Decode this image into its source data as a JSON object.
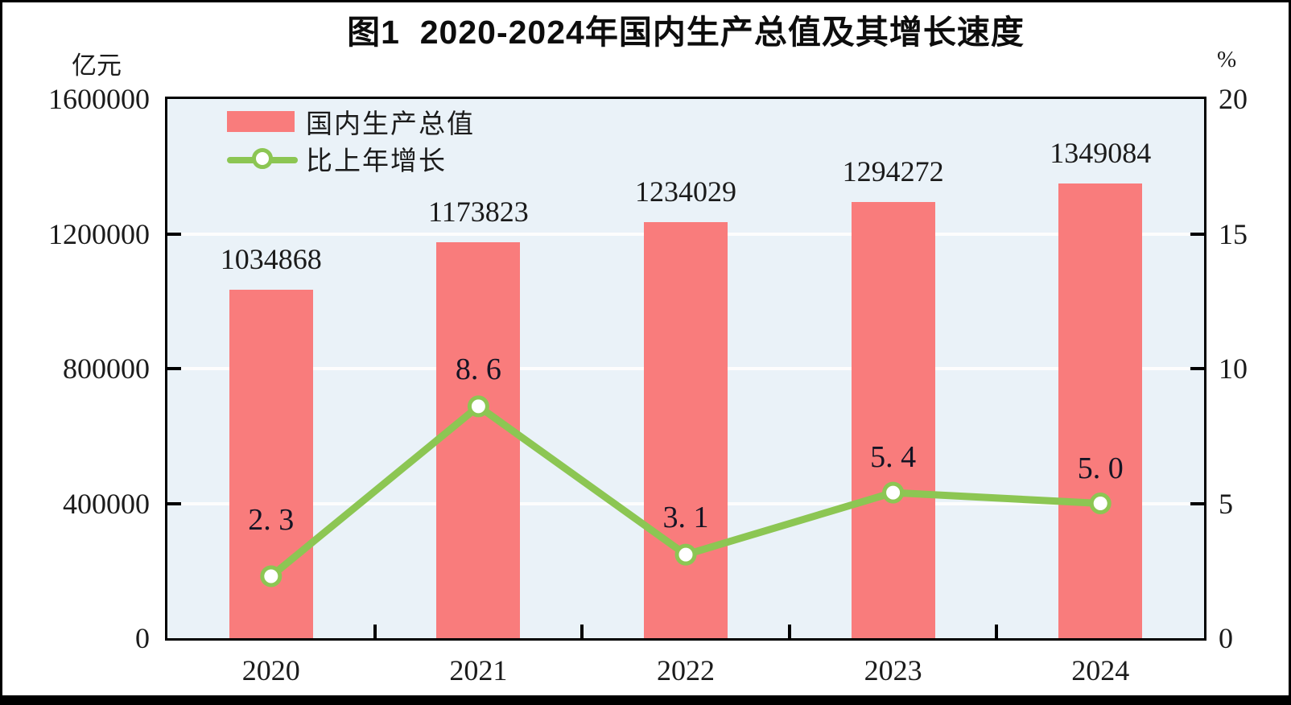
{
  "figure": {
    "frame_color": "#000000",
    "background": "#ffffff",
    "plot_background": "#eaf2f8"
  },
  "chart_data": {
    "type": "bar",
    "title": "图1  2020-2024年国内生产总值及其增长速度",
    "categories": [
      "2020",
      "2021",
      "2022",
      "2023",
      "2024"
    ],
    "series": [
      {
        "name": "国内生产总值",
        "type": "bar",
        "values": [
          1034868,
          1173823,
          1234029,
          1294272,
          1349084
        ],
        "value_labels": [
          "1034868",
          "1173823",
          "1234029",
          "1294272",
          "1349084"
        ],
        "color": "#f97c7c",
        "axis": "left"
      },
      {
        "name": "比上年增长",
        "type": "line",
        "values": [
          2.3,
          8.6,
          3.1,
          5.4,
          5.0
        ],
        "value_labels": [
          "2. 3",
          "8. 6",
          "3. 1",
          "5. 4",
          "5. 0"
        ],
        "color": "#8cc653",
        "marker": "circle-white-fill",
        "axis": "right"
      }
    ],
    "left_axis": {
      "unit": "亿元",
      "min": 0,
      "max": 1600000,
      "tick_values": [
        0,
        400000,
        800000,
        1200000,
        1600000
      ],
      "tick_labels": [
        "0",
        "400000",
        "800000",
        "1200000",
        "1600000"
      ]
    },
    "right_axis": {
      "unit": "%",
      "min": 0,
      "max": 20,
      "tick_values": [
        0,
        5,
        10,
        15,
        20
      ],
      "tick_labels": [
        "0",
        "5",
        "10",
        "15",
        "20"
      ]
    },
    "grid": "horizontal-white-lines",
    "legend_position": "top-left-inside"
  }
}
